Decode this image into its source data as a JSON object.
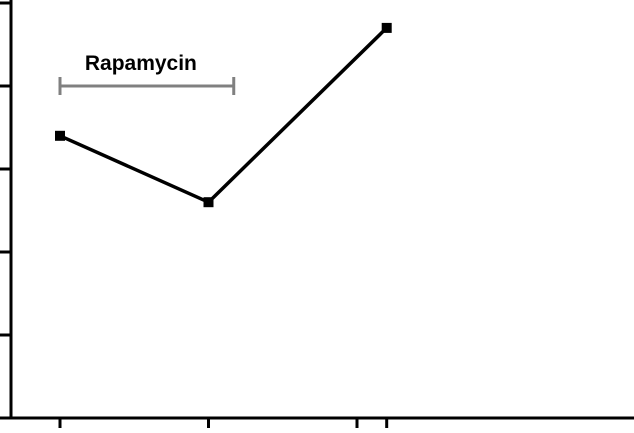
{
  "chart_data": {
    "type": "line",
    "title": "",
    "xlabel": "",
    "ylabel": "",
    "x": [
      0,
      1,
      2.2
    ],
    "series": [
      {
        "values": [
          3.4,
          2.6,
          4.7
        ]
      }
    ],
    "xlim": [
      0,
      2.2
    ],
    "ylim": [
      0,
      5
    ],
    "x_ticks": [
      0,
      1,
      2,
      2.2
    ],
    "y_ticks": [
      0,
      1,
      2,
      3,
      4,
      5
    ],
    "tick_labels_visible": false,
    "grid": false,
    "legend": "none",
    "annotations": [
      {
        "type": "bracket",
        "text": "Rapamycin",
        "x_start": 0,
        "x_end": 1.17,
        "y": 4.0,
        "color": "#808080"
      }
    ],
    "line_color": "#000000",
    "marker": "square"
  }
}
